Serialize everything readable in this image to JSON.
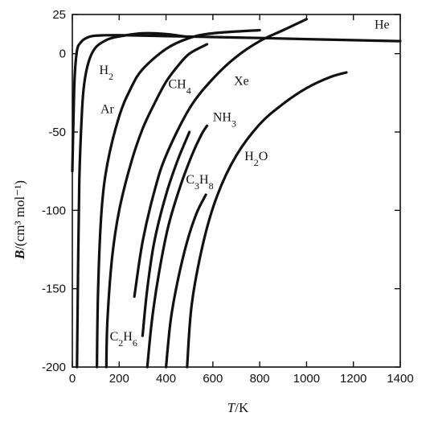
{
  "chart_data": {
    "type": "line",
    "xlabel_var": "T",
    "xlabel_unit": "/K",
    "ylabel_var": "B",
    "ylabel_unit": "/(cm³ mol⁻¹)",
    "xlim": [
      0,
      1400
    ],
    "ylim": [
      -200,
      25
    ],
    "xticks": [
      0,
      200,
      400,
      600,
      800,
      1000,
      1200,
      1400
    ],
    "yticks": [
      25,
      0,
      -50,
      -100,
      -150,
      -200
    ],
    "series": [
      {
        "name": "He",
        "label_base": "He",
        "label_sub": "",
        "label_at": [
          1290,
          16
        ],
        "points": [
          [
            0,
            -75
          ],
          [
            5,
            -40
          ],
          [
            10,
            -15
          ],
          [
            20,
            2
          ],
          [
            35,
            7
          ],
          [
            60,
            10
          ],
          [
            100,
            11.5
          ],
          [
            200,
            11.8
          ],
          [
            400,
            11.2
          ],
          [
            600,
            10.6
          ],
          [
            800,
            10.0
          ],
          [
            1000,
            9.3
          ],
          [
            1200,
            8.6
          ],
          [
            1400,
            8.0
          ]
        ]
      },
      {
        "name": "H2",
        "label_base": "H",
        "label_sub": "2",
        "label_at": [
          115,
          -13
        ],
        "points": [
          [
            20,
            -200
          ],
          [
            25,
            -130
          ],
          [
            30,
            -80
          ],
          [
            40,
            -40
          ],
          [
            50,
            -20
          ],
          [
            70,
            -5
          ],
          [
            100,
            4
          ],
          [
            150,
            9
          ],
          [
            200,
            11
          ],
          [
            300,
            13
          ],
          [
            400,
            12.5
          ],
          [
            500,
            10.5
          ]
        ]
      },
      {
        "name": "Ar",
        "label_base": "Ar",
        "label_sub": "",
        "label_at": [
          120,
          -38
        ],
        "points": [
          [
            105,
            -200
          ],
          [
            110,
            -150
          ],
          [
            125,
            -100
          ],
          [
            150,
            -70
          ],
          [
            200,
            -40
          ],
          [
            250,
            -22
          ],
          [
            300,
            -10
          ],
          [
            400,
            3
          ],
          [
            500,
            10
          ],
          [
            600,
            13
          ],
          [
            800,
            15
          ]
        ]
      },
      {
        "name": "CH4",
        "label_base": "CH",
        "label_sub": "4",
        "label_at": [
          410,
          -22
        ],
        "points": [
          [
            145,
            -200
          ],
          [
            150,
            -170
          ],
          [
            170,
            -130
          ],
          [
            200,
            -100
          ],
          [
            250,
            -70
          ],
          [
            300,
            -48
          ],
          [
            350,
            -32
          ],
          [
            400,
            -18
          ],
          [
            450,
            -8
          ],
          [
            500,
            0
          ],
          [
            575,
            6
          ]
        ]
      },
      {
        "name": "Xe",
        "label_base": "Xe",
        "label_sub": "",
        "label_at": [
          690,
          -20
        ],
        "points": [
          [
            265,
            -155
          ],
          [
            300,
            -120
          ],
          [
            350,
            -88
          ],
          [
            400,
            -65
          ],
          [
            500,
            -35
          ],
          [
            600,
            -16
          ],
          [
            700,
            -2
          ],
          [
            800,
            8
          ],
          [
            900,
            15
          ],
          [
            1000,
            22
          ]
        ]
      },
      {
        "name": "C2H6",
        "label_base": "C",
        "label_sub": "2",
        "label_mid": "H",
        "label_sub2": "6",
        "label_at": [
          160,
          -183
        ],
        "points": [
          [
            300,
            -180
          ],
          [
            320,
            -150
          ],
          [
            350,
            -120
          ],
          [
            400,
            -90
          ],
          [
            450,
            -68
          ],
          [
            500,
            -50
          ]
        ]
      },
      {
        "name": "NH3",
        "label_base": "NH",
        "label_sub": "3",
        "label_at": [
          600,
          -43
        ],
        "points": [
          [
            320,
            -200
          ],
          [
            340,
            -170
          ],
          [
            370,
            -140
          ],
          [
            410,
            -110
          ],
          [
            460,
            -85
          ],
          [
            510,
            -65
          ],
          [
            550,
            -52
          ],
          [
            575,
            -46
          ]
        ]
      },
      {
        "name": "C3H8",
        "label_base": "C",
        "label_sub": "3",
        "label_mid": "H",
        "label_sub2": "8",
        "label_at": [
          485,
          -83
        ],
        "points": [
          [
            400,
            -200
          ],
          [
            420,
            -170
          ],
          [
            450,
            -145
          ],
          [
            490,
            -120
          ],
          [
            530,
            -102
          ],
          [
            570,
            -90
          ]
        ]
      },
      {
        "name": "H2O",
        "label_base": "H",
        "label_sub": "2",
        "label_mid": "O",
        "label_sub2": "",
        "label_at": [
          735,
          -68
        ],
        "points": [
          [
            490,
            -200
          ],
          [
            510,
            -160
          ],
          [
            560,
            -120
          ],
          [
            620,
            -90
          ],
          [
            700,
            -65
          ],
          [
            800,
            -45
          ],
          [
            900,
            -32
          ],
          [
            1000,
            -22
          ],
          [
            1100,
            -15
          ],
          [
            1170,
            -12
          ]
        ]
      }
    ]
  }
}
